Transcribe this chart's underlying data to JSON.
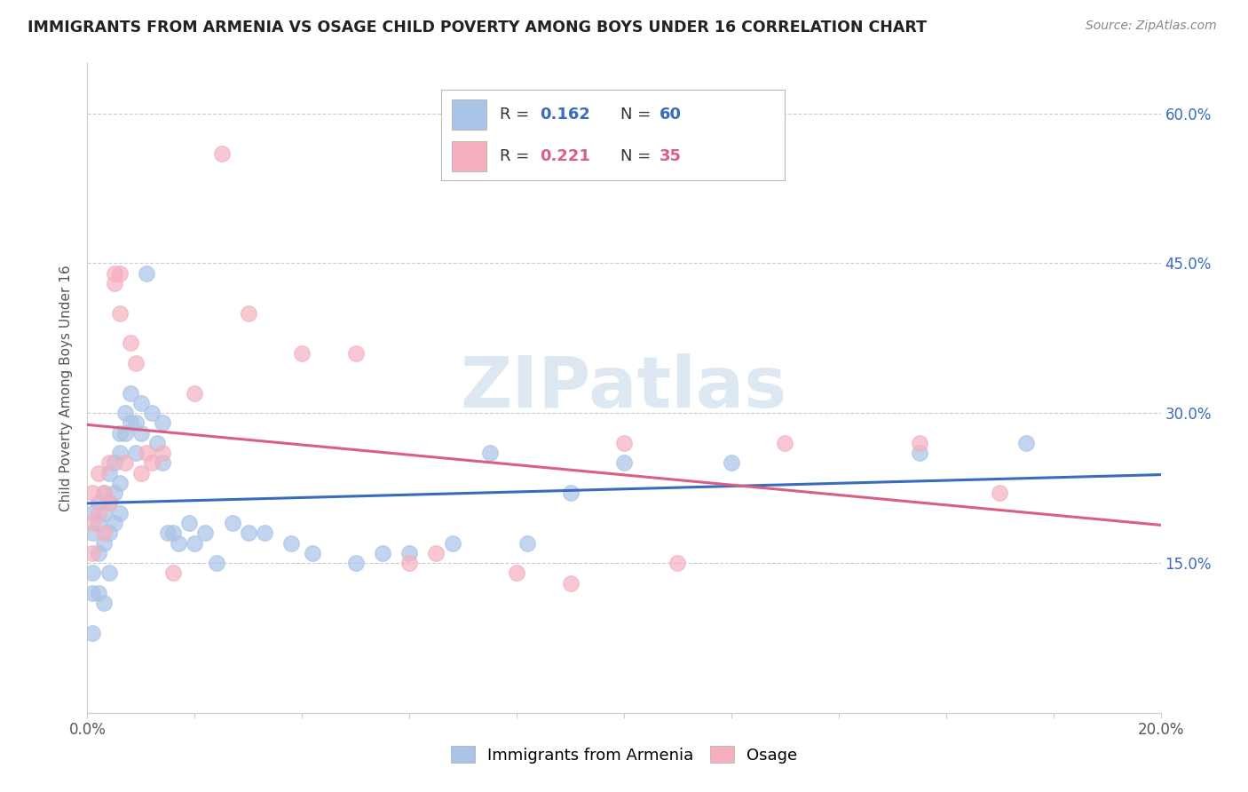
{
  "title": "IMMIGRANTS FROM ARMENIA VS OSAGE CHILD POVERTY AMONG BOYS UNDER 16 CORRELATION CHART",
  "source": "Source: ZipAtlas.com",
  "ylabel": "Child Poverty Among Boys Under 16",
  "xlim": [
    0.0,
    0.2
  ],
  "ylim": [
    0.0,
    0.65
  ],
  "xticks": [
    0.0,
    0.02,
    0.04,
    0.06,
    0.08,
    0.1,
    0.12,
    0.14,
    0.16,
    0.18,
    0.2
  ],
  "ytick_positions": [
    0.0,
    0.15,
    0.3,
    0.45,
    0.6
  ],
  "yticklabels_right": [
    "",
    "15.0%",
    "30.0%",
    "45.0%",
    "60.0%"
  ],
  "background_color": "#ffffff",
  "grid_color": "#cccccc",
  "armenia_color": "#aac4e8",
  "osage_color": "#f5b0bf",
  "armenia_line_color": "#3a6bbf",
  "osage_line_color": "#d96080",
  "armenia_R": 0.162,
  "armenia_N": 60,
  "osage_R": 0.221,
  "osage_N": 35,
  "armenia_scatter_x": [
    0.001,
    0.001,
    0.001,
    0.001,
    0.001,
    0.002,
    0.002,
    0.002,
    0.002,
    0.003,
    0.003,
    0.003,
    0.003,
    0.004,
    0.004,
    0.004,
    0.004,
    0.005,
    0.005,
    0.005,
    0.006,
    0.006,
    0.006,
    0.006,
    0.007,
    0.007,
    0.008,
    0.008,
    0.009,
    0.009,
    0.01,
    0.01,
    0.011,
    0.012,
    0.013,
    0.014,
    0.014,
    0.015,
    0.016,
    0.017,
    0.019,
    0.02,
    0.022,
    0.024,
    0.027,
    0.03,
    0.033,
    0.038,
    0.042,
    0.05,
    0.055,
    0.06,
    0.068,
    0.075,
    0.082,
    0.09,
    0.1,
    0.12,
    0.155,
    0.175
  ],
  "armenia_scatter_y": [
    0.2,
    0.18,
    0.14,
    0.12,
    0.08,
    0.21,
    0.19,
    0.16,
    0.12,
    0.22,
    0.2,
    0.17,
    0.11,
    0.24,
    0.21,
    0.18,
    0.14,
    0.25,
    0.22,
    0.19,
    0.28,
    0.26,
    0.23,
    0.2,
    0.3,
    0.28,
    0.32,
    0.29,
    0.29,
    0.26,
    0.31,
    0.28,
    0.44,
    0.3,
    0.27,
    0.29,
    0.25,
    0.18,
    0.18,
    0.17,
    0.19,
    0.17,
    0.18,
    0.15,
    0.19,
    0.18,
    0.18,
    0.17,
    0.16,
    0.15,
    0.16,
    0.16,
    0.17,
    0.26,
    0.17,
    0.22,
    0.25,
    0.25,
    0.26,
    0.27
  ],
  "osage_scatter_x": [
    0.001,
    0.001,
    0.001,
    0.002,
    0.002,
    0.003,
    0.003,
    0.004,
    0.004,
    0.005,
    0.005,
    0.006,
    0.006,
    0.007,
    0.008,
    0.009,
    0.01,
    0.011,
    0.012,
    0.014,
    0.016,
    0.02,
    0.025,
    0.03,
    0.04,
    0.05,
    0.06,
    0.065,
    0.08,
    0.09,
    0.1,
    0.11,
    0.13,
    0.155,
    0.17
  ],
  "osage_scatter_y": [
    0.22,
    0.19,
    0.16,
    0.24,
    0.2,
    0.22,
    0.18,
    0.25,
    0.21,
    0.44,
    0.43,
    0.44,
    0.4,
    0.25,
    0.37,
    0.35,
    0.24,
    0.26,
    0.25,
    0.26,
    0.14,
    0.32,
    0.56,
    0.4,
    0.36,
    0.36,
    0.15,
    0.16,
    0.14,
    0.13,
    0.27,
    0.15,
    0.27,
    0.27,
    0.22
  ]
}
